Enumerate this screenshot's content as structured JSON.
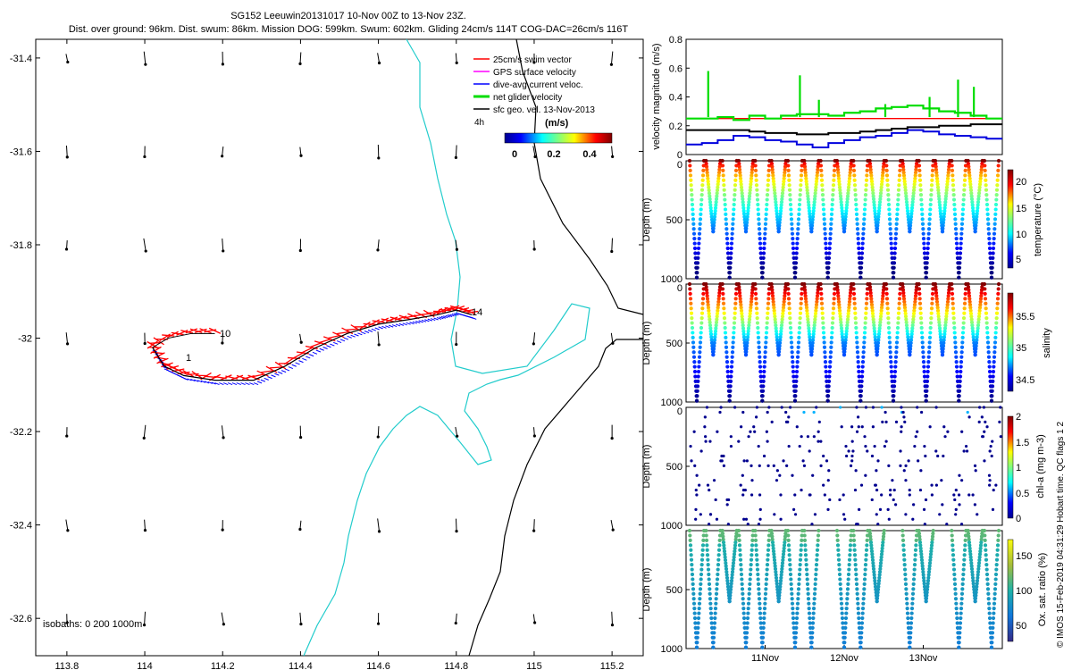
{
  "title_line1": "SG152 Leeuwin20131017 10-Nov 00Z to 13-Nov 23Z.",
  "title_line2": "Dist. over ground: 96km. Dist. swum: 86km. Mission DOG: 599km. Swum: 602km. Gliding 24cm/s 114T COG-DAC=26cm/s 116T",
  "side_text": "© IMOS 15-Feb-2019 04:31:29 Hobart time. QC flags 1  2",
  "chart_data": [
    {
      "type": "scatter",
      "name": "map",
      "xlim": [
        113.72,
        115.28
      ],
      "ylim": [
        -32.68,
        -31.36
      ],
      "xticks": [
        "113.8",
        "114",
        "114.2",
        "114.4",
        "114.6",
        "114.8",
        "115",
        "115.2"
      ],
      "yticks": [
        "-31.4",
        "-31.6",
        "-31.8",
        "-32",
        "-32.2",
        "-32.4",
        "-32.6"
      ],
      "legend": {
        "placement": "top-right",
        "entries": [
          {
            "label": "25cm/s swim vector",
            "color": "#ff0000"
          },
          {
            "label": "GPS surface velocity",
            "color": "#ff00ff"
          },
          {
            "label": "dive-avg current veloc.",
            "color": "#0000ff"
          },
          {
            "label": "net glider velocity",
            "color": "#00dd00"
          },
          {
            "label": "sfc geo. vel. 13-Nov-2013",
            "color": "#000000"
          }
        ],
        "scale_label": "4h"
      },
      "colorbar": {
        "label": "(m/s)",
        "ticks": [
          "0",
          "0.2",
          "0.4"
        ]
      },
      "annotations": [
        {
          "text": "10",
          "x": 114.18,
          "y": -31.99
        },
        {
          "text": "14",
          "x": 114.82,
          "y": -31.95
        },
        {
          "text": "1",
          "x": 114.06,
          "y": -32.08
        }
      ],
      "isobaths_label": "isobaths: 0   200  1000m",
      "track": [
        [
          114.02,
          -32.02
        ],
        [
          114.05,
          -32.06
        ],
        [
          114.1,
          -32.08
        ],
        [
          114.18,
          -32.09
        ],
        [
          114.28,
          -32.09
        ],
        [
          114.36,
          -32.06
        ],
        [
          114.44,
          -32.02
        ],
        [
          114.52,
          -31.99
        ],
        [
          114.6,
          -31.97
        ],
        [
          114.68,
          -31.96
        ],
        [
          114.75,
          -31.95
        ],
        [
          114.8,
          -31.94
        ],
        [
          114.84,
          -31.95
        ]
      ],
      "track_start": [
        [
          114.02,
          -32.02
        ],
        [
          114.06,
          -32.0
        ],
        [
          114.12,
          -31.99
        ],
        [
          114.18,
          -31.99
        ]
      ]
    },
    {
      "type": "line",
      "name": "velocity",
      "ylabel": "velocity magnitude (m/s)",
      "ylim": [
        0,
        0.8
      ],
      "yticks": [
        "0",
        "0.2",
        "0.4",
        "0.6",
        "0.8"
      ],
      "series": [
        {
          "color": "#ff0000",
          "values": [
            0.25,
            0.25,
            0.25,
            0.25,
            0.25,
            0.25,
            0.25,
            0.25,
            0.25,
            0.25,
            0.25,
            0.25,
            0.25,
            0.25,
            0.25,
            0.25,
            0.25,
            0.25,
            0.25,
            0.25
          ]
        },
        {
          "color": "#00dd00",
          "values": [
            0.25,
            0.25,
            0.26,
            0.24,
            0.27,
            0.25,
            0.27,
            0.28,
            0.28,
            0.27,
            0.29,
            0.3,
            0.32,
            0.33,
            0.34,
            0.32,
            0.3,
            0.29,
            0.27,
            0.25
          ]
        },
        {
          "color": "#0000dd",
          "values": [
            0.07,
            0.08,
            0.1,
            0.13,
            0.12,
            0.1,
            0.09,
            0.07,
            0.05,
            0.08,
            0.1,
            0.12,
            0.13,
            0.15,
            0.17,
            0.16,
            0.14,
            0.13,
            0.12,
            0.11
          ]
        },
        {
          "color": "#000000",
          "values": [
            0.17,
            0.17,
            0.17,
            0.17,
            0.16,
            0.15,
            0.15,
            0.14,
            0.14,
            0.15,
            0.15,
            0.16,
            0.17,
            0.18,
            0.19,
            0.19,
            0.2,
            0.2,
            0.21,
            0.21
          ]
        }
      ]
    },
    {
      "type": "scatter",
      "name": "temperature",
      "ylabel": "Depth (m)",
      "cbar_label": "temperature (°C)",
      "cbar_ticks": [
        "5",
        "10",
        "15",
        "20"
      ],
      "ylim": [
        0,
        1000
      ],
      "yticks": [
        "0",
        "500",
        "1000"
      ]
    },
    {
      "type": "scatter",
      "name": "salinity",
      "ylabel": "Depth (m)",
      "cbar_label": "salinity",
      "cbar_ticks": [
        "34.5",
        "35",
        "35.5"
      ],
      "ylim": [
        0,
        1000
      ],
      "yticks": [
        "0",
        "500",
        "1000"
      ]
    },
    {
      "type": "scatter",
      "name": "chla",
      "ylabel": "Depth (m)",
      "cbar_label": "chl-a (mg m-3)",
      "cbar_ticks": [
        "0",
        "0.5",
        "1",
        "1.5",
        "2"
      ],
      "ylim": [
        0,
        1000
      ],
      "yticks": [
        "0",
        "500",
        "1000"
      ]
    },
    {
      "type": "scatter",
      "name": "oxygen",
      "ylabel": "Depth (m)",
      "cbar_label": "Ox. sat. ratio (%)",
      "cbar_ticks": [
        "50",
        "100",
        "150"
      ],
      "ylim": [
        0,
        1000
      ],
      "yticks": [
        "500",
        "1000"
      ],
      "xticks": [
        "11Nov",
        "12Nov",
        "13Nov"
      ]
    }
  ]
}
